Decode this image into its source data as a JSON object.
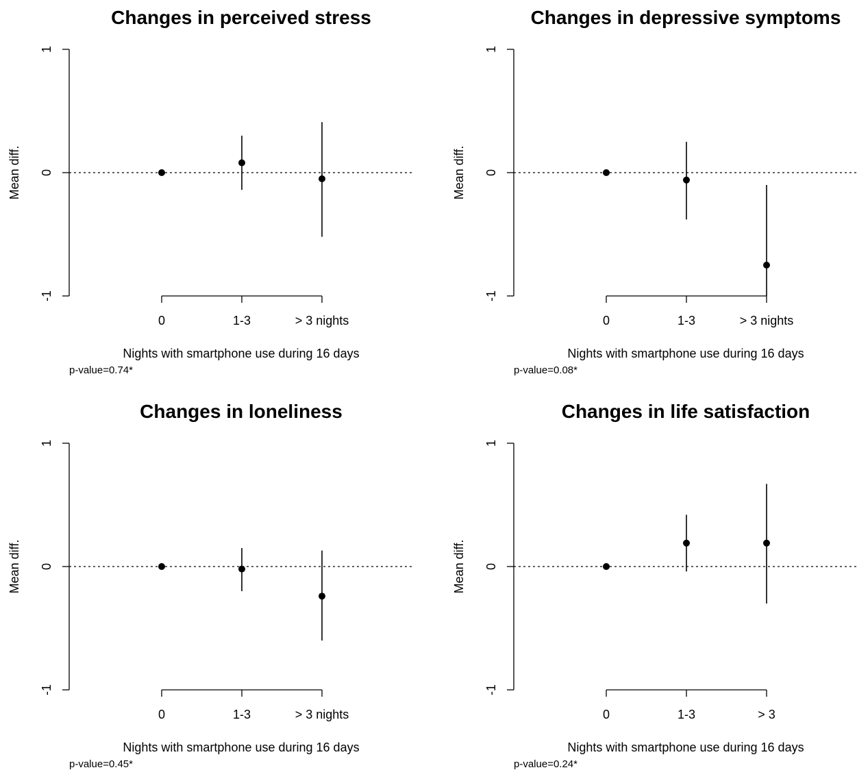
{
  "chart_data": [
    {
      "type": "scatter",
      "title": "Changes in perceived stress",
      "xlabel": "Nights with smartphone use during 16 days",
      "ylabel": "Mean diff.",
      "ylim": [
        -1,
        1
      ],
      "yticks": [
        "-1",
        "0",
        "1"
      ],
      "reference_line": 0,
      "categories": [
        "0",
        "1-3",
        "> 3 nights"
      ],
      "estimates": [
        0,
        0.08,
        -0.05
      ],
      "ci_lower": [
        0,
        -0.14,
        -0.52
      ],
      "ci_upper": [
        0,
        0.3,
        0.41
      ],
      "note": "p-value=0.74*"
    },
    {
      "type": "scatter",
      "title": "Changes in depressive symptoms",
      "xlabel": "Nights with smartphone use during 16 days",
      "ylabel": "Mean diff.",
      "ylim": [
        -1,
        1
      ],
      "yticks": [
        "-1",
        "0",
        "1"
      ],
      "reference_line": 0,
      "categories": [
        "0",
        "1-3",
        "> 3 nights"
      ],
      "estimates": [
        0,
        -0.06,
        -0.75
      ],
      "ci_lower": [
        0,
        -0.38,
        -1.0
      ],
      "ci_upper": [
        0,
        0.25,
        -0.1
      ],
      "note": "p-value=0.08*"
    },
    {
      "type": "scatter",
      "title": "Changes in loneliness",
      "xlabel": "Nights with smartphone use during 16 days",
      "ylabel": "Mean diff.",
      "ylim": [
        -1,
        1
      ],
      "yticks": [
        "-1",
        "0",
        "1"
      ],
      "reference_line": 0,
      "categories": [
        "0",
        "1-3",
        "> 3 nights"
      ],
      "estimates": [
        0,
        -0.02,
        -0.24
      ],
      "ci_lower": [
        0,
        -0.2,
        -0.6
      ],
      "ci_upper": [
        0,
        0.15,
        0.13
      ],
      "note": "p-value=0.45*"
    },
    {
      "type": "scatter",
      "title": "Changes in life satisfaction",
      "xlabel": "Nights with smartphone use during 16 days",
      "ylabel": "Mean diff.",
      "ylim": [
        -1,
        1
      ],
      "yticks": [
        "-1",
        "0",
        "1"
      ],
      "reference_line": 0,
      "categories": [
        "0",
        "1-3",
        "> 3"
      ],
      "estimates": [
        0,
        0.19,
        0.19
      ],
      "ci_lower": [
        0,
        -0.04,
        -0.3
      ],
      "ci_upper": [
        0,
        0.42,
        0.67
      ],
      "note": "p-value=0.24*"
    }
  ]
}
